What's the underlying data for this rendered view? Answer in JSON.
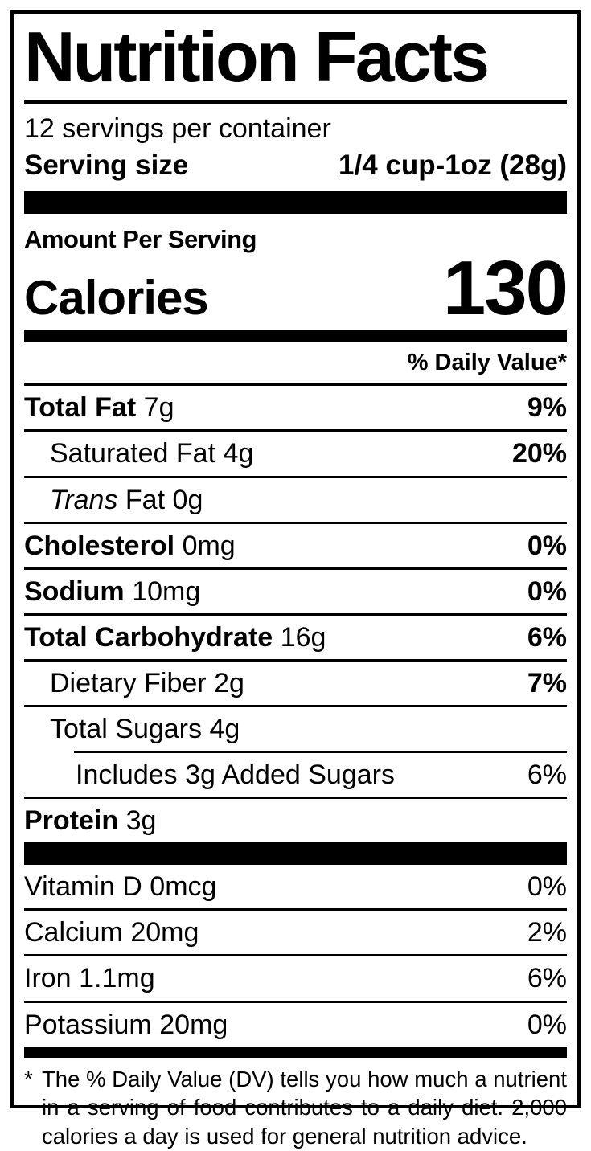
{
  "label": {
    "title": "Nutrition Facts",
    "servings_per_container": "12 servings per container",
    "serving_size_label": "Serving size",
    "serving_size_value": "1/4 cup-1oz (28g)",
    "amount_per_serving": "Amount Per Serving",
    "calories_label": "Calories",
    "calories_value": "130",
    "daily_value_header": "% Daily Value*",
    "colors": {
      "ink": "#000000",
      "paper": "#ffffff"
    },
    "nutrients": [
      {
        "name": "Total Fat",
        "amount": "7g",
        "dv": "9%"
      },
      {
        "name": "Saturated Fat",
        "amount": "4g",
        "dv": "20%"
      },
      {
        "name": "Trans",
        "suffix": "Fat",
        "amount": "0g",
        "dv": ""
      },
      {
        "name": "Cholesterol",
        "amount": "0mg",
        "dv": "0%"
      },
      {
        "name": "Sodium",
        "amount": "10mg",
        "dv": "0%"
      },
      {
        "name": "Total Carbohydrate",
        "amount": "16g",
        "dv": "6%"
      },
      {
        "name": "Dietary Fiber",
        "amount": "2g",
        "dv": "7%"
      },
      {
        "name": "Total Sugars",
        "amount": "4g",
        "dv": ""
      },
      {
        "name": "Includes 3g Added Sugars",
        "amount": "",
        "dv": "6%"
      },
      {
        "name": "Protein",
        "amount": "3g",
        "dv": ""
      }
    ],
    "vitamins": [
      {
        "name": "Vitamin D",
        "amount": "0mcg",
        "dv": "0%"
      },
      {
        "name": "Calcium",
        "amount": "20mg",
        "dv": "2%"
      },
      {
        "name": "Iron",
        "amount": "1.1mg",
        "dv": "6%"
      },
      {
        "name": "Potassium",
        "amount": "20mg",
        "dv": "0%"
      }
    ],
    "footnote_marker": "*",
    "footnote": "The % Daily Value (DV) tells you how much a nutrient in a serving of food contributes to a daily diet. 2,000 calories a day is used for general nutrition advice."
  }
}
